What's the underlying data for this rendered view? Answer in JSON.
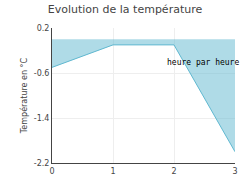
{
  "chart_data": {
    "type": "area",
    "title": "Evolution de la température",
    "y_label": "Température en °C",
    "x": [
      0,
      1,
      2,
      3
    ],
    "series": [
      {
        "name": "Température en °C",
        "color": "#60b8d0",
        "values": [
          -0.5,
          -0.1,
          -0.1,
          -2.0
        ]
      }
    ],
    "xlim": [
      0,
      3
    ],
    "xticks": [
      0,
      1,
      2,
      3
    ],
    "ylim": [
      -2.2,
      0.2
    ],
    "yticks": [
      0.2,
      -0.6,
      -1.4,
      -2.2
    ],
    "grid": true,
    "annotations": [
      {
        "text": "heure par heure",
        "x": 1.85,
        "y": -0.42
      }
    ]
  }
}
